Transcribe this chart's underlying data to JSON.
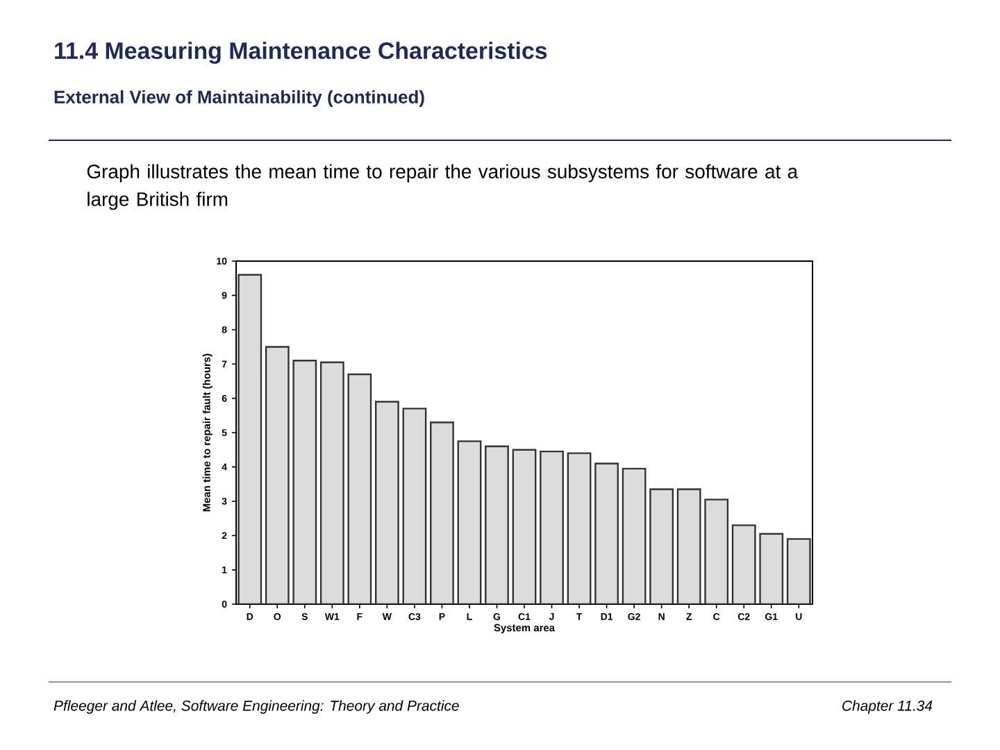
{
  "chart_data": {
    "type": "bar",
    "title": "11.4 Measuring Maintenance Characteristics",
    "subtitle": "External View of Maintainability (continued)",
    "annotations": [
      "Graph illustrates the mean time to repair the various subsystems for software at a large British firm",
      "Pfleeger and Atlee, Software Engineering: Theory and Practice",
      "Chapter 11.34"
    ],
    "xlabel": "System area",
    "ylabel": "Mean time to repair fault (hours)",
    "categories": [
      "D",
      "O",
      "S",
      "W1",
      "F",
      "W",
      "C3",
      "P",
      "L",
      "G",
      "C1",
      "J",
      "T",
      "D1",
      "G2",
      "N",
      "Z",
      "C",
      "C2",
      "G1",
      "U"
    ],
    "values": [
      9.6,
      7.5,
      7.1,
      7.05,
      6.7,
      5.9,
      5.7,
      5.3,
      4.75,
      4.6,
      4.5,
      4.45,
      4.4,
      4.1,
      3.95,
      3.35,
      3.35,
      3.05,
      2.3,
      2.05,
      1.9
    ],
    "color": "#dcdcdc",
    "ylim": [
      0,
      10
    ],
    "yticks": [
      0,
      1,
      2,
      3,
      4,
      5,
      6,
      7,
      8,
      9,
      10
    ],
    "grid": false
  }
}
